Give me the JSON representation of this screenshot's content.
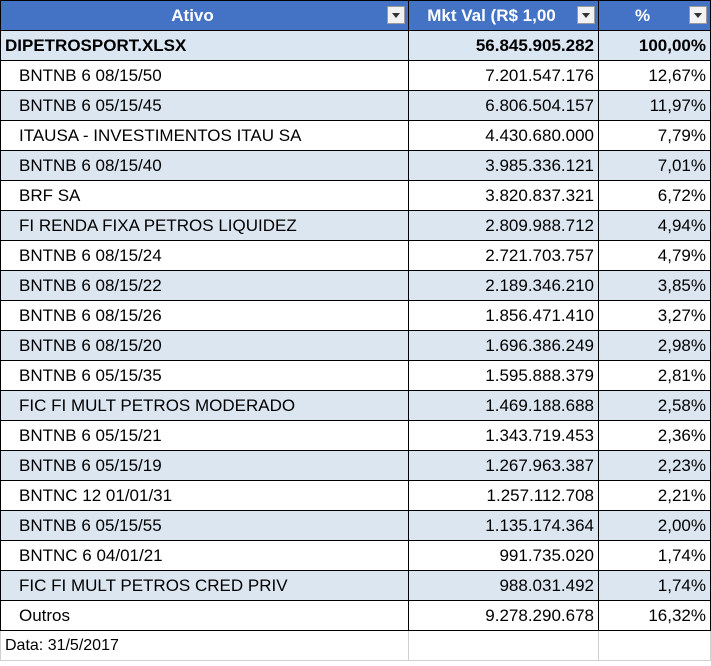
{
  "headers": {
    "ativo": "Ativo",
    "mkt": "Mkt Val (R$ 1,00",
    "pct": "%"
  },
  "total": {
    "name": "DIPETROSPORT.XLSX",
    "mkt": "56.845.905.282",
    "pct": "100,00%"
  },
  "rows": [
    {
      "name": "BNTNB 6 08/15/50",
      "mkt": "7.201.547.176",
      "pct": "12,67%"
    },
    {
      "name": "BNTNB 6 05/15/45",
      "mkt": "6.806.504.157",
      "pct": "11,97%"
    },
    {
      "name": "ITAUSA - INVESTIMENTOS ITAU SA",
      "mkt": "4.430.680.000",
      "pct": "7,79%"
    },
    {
      "name": "BNTNB 6 08/15/40",
      "mkt": "3.985.336.121",
      "pct": "7,01%"
    },
    {
      "name": "BRF SA",
      "mkt": "3.820.837.321",
      "pct": "6,72%"
    },
    {
      "name": "FI RENDA FIXA PETROS LIQUIDEZ",
      "mkt": "2.809.988.712",
      "pct": "4,94%"
    },
    {
      "name": "BNTNB 6 08/15/24",
      "mkt": "2.721.703.757",
      "pct": "4,79%"
    },
    {
      "name": "BNTNB 6 08/15/22",
      "mkt": "2.189.346.210",
      "pct": "3,85%"
    },
    {
      "name": "BNTNB 6 08/15/26",
      "mkt": "1.856.471.410",
      "pct": "3,27%"
    },
    {
      "name": "BNTNB 6 08/15/20",
      "mkt": "1.696.386.249",
      "pct": "2,98%"
    },
    {
      "name": "BNTNB 6 05/15/35",
      "mkt": "1.595.888.379",
      "pct": "2,81%"
    },
    {
      "name": "FIC FI MULT PETROS MODERADO",
      "mkt": "1.469.188.688",
      "pct": "2,58%"
    },
    {
      "name": "BNTNB 6 05/15/21",
      "mkt": "1.343.719.453",
      "pct": "2,36%"
    },
    {
      "name": "BNTNB 6 05/15/19",
      "mkt": "1.267.963.387",
      "pct": "2,23%"
    },
    {
      "name": "BNTNC 12 01/01/31",
      "mkt": "1.257.112.708",
      "pct": "2,21%"
    },
    {
      "name": "BNTNB 6 05/15/55",
      "mkt": "1.135.174.364",
      "pct": "2,00%"
    },
    {
      "name": "BNTNC 6 04/01/21",
      "mkt": "991.735.020",
      "pct": "1,74%"
    },
    {
      "name": "FIC FI MULT PETROS CRED PRIV",
      "mkt": "988.031.492",
      "pct": "1,74%"
    },
    {
      "name": "Outros",
      "mkt": "9.278.290.678",
      "pct": "16,32%"
    }
  ],
  "footer": {
    "date": "Data: 31/5/2017"
  },
  "colors": {
    "header_bg": "#4472c4",
    "header_text": "#ffffff",
    "band": "#dce6f1"
  }
}
